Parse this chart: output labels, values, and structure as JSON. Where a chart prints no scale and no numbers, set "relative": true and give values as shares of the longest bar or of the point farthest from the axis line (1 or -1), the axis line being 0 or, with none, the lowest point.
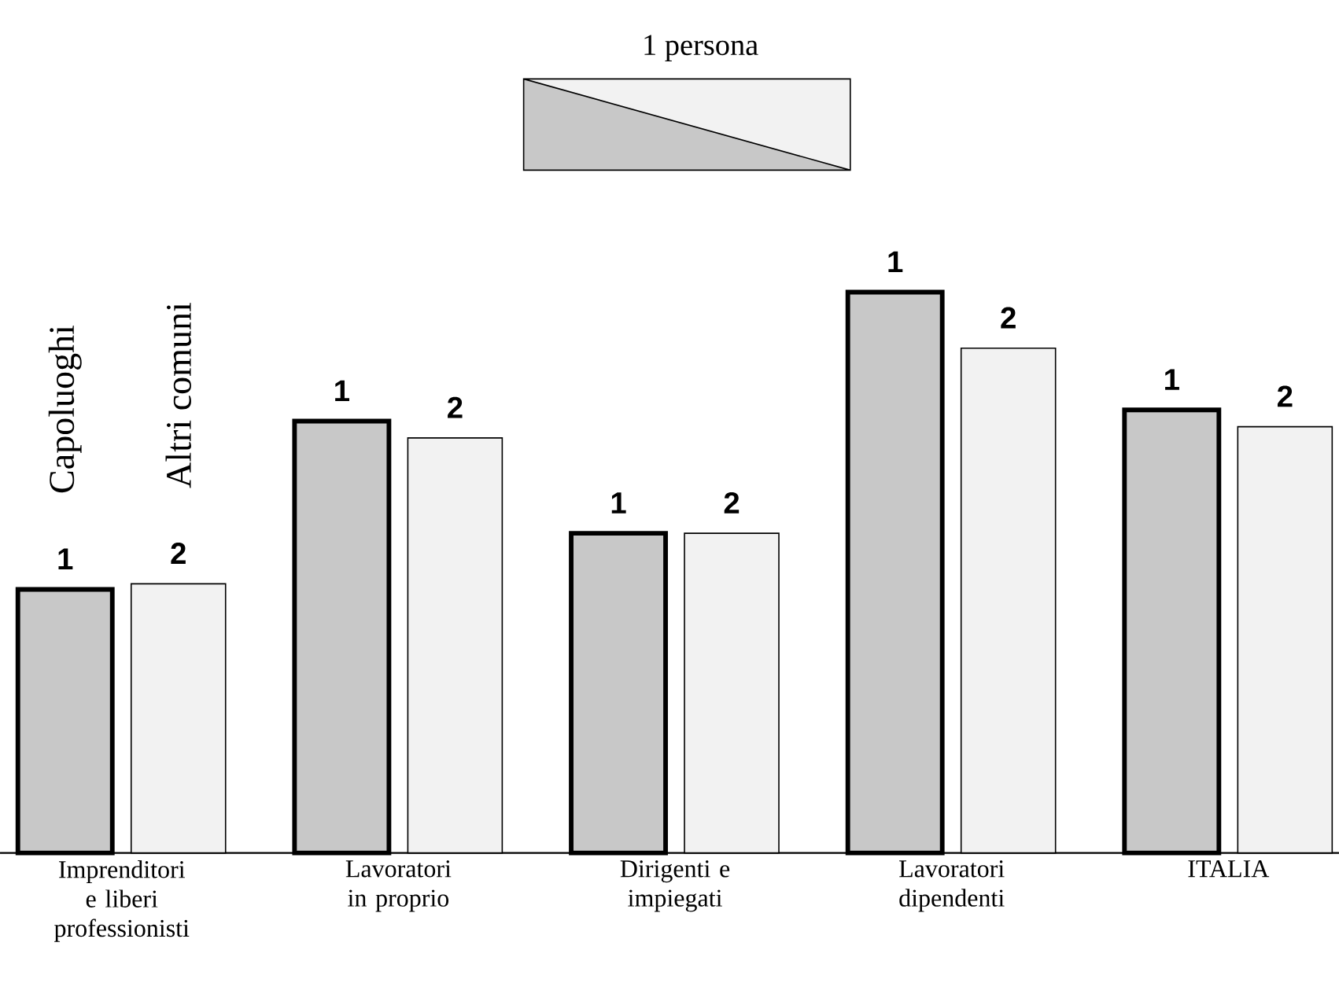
{
  "chart_data": {
    "type": "bar",
    "relative": true,
    "categories": [
      "Imprenditori e liberi professionisti",
      "Lavoratori in proprio",
      "Dirigenti e impiegati",
      "Lavoratori dipendenti",
      "ITALIA"
    ],
    "series": [
      {
        "name": "Capoluoghi",
        "color": "#c8c8c8",
        "values": [
          0.47,
          0.77,
          0.57,
          1,
          0.79
        ]
      },
      {
        "name": "Altri comuni",
        "color": "#f2f2f2",
        "values": [
          0.48,
          0.74,
          0.57,
          0.9,
          0.76
        ]
      }
    ],
    "annotations": [
      "1 persona",
      "1",
      "2",
      "1",
      "2",
      "1",
      "2",
      "1",
      "2",
      "1",
      "2"
    ]
  }
}
